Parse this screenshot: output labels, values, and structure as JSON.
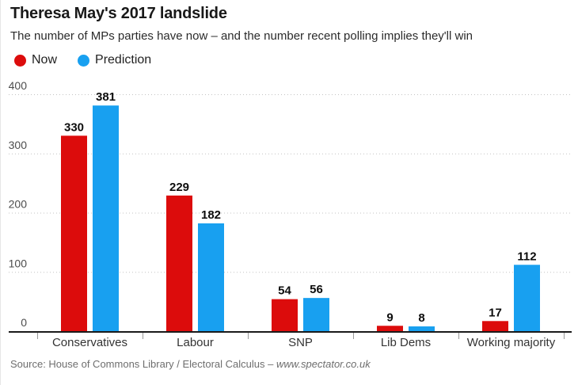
{
  "header": {
    "title": "Theresa May's 2017 landslide",
    "subtitle": "The number of MPs parties have now – and the number recent polling implies they'll win"
  },
  "legend": {
    "items": [
      {
        "label": "Now",
        "color": "#dc0c0c"
      },
      {
        "label": "Prediction",
        "color": "#18a0f0"
      }
    ]
  },
  "chart_data": {
    "type": "bar",
    "title": "Theresa May's 2017 landslide",
    "subtitle": "The number of MPs parties have now – and the number recent polling implies they'll win",
    "categories": [
      "Conservatives",
      "Labour",
      "SNP",
      "Lib Dems",
      "Working majority"
    ],
    "series": [
      {
        "name": "Now",
        "color": "#dc0c0c",
        "values": [
          330,
          229,
          54,
          9,
          17
        ]
      },
      {
        "name": "Prediction",
        "color": "#18a0f0",
        "values": [
          381,
          182,
          56,
          8,
          112
        ]
      }
    ],
    "xlabel": "",
    "ylabel": "",
    "ylim": [
      0,
      400
    ],
    "yticks": [
      0,
      100,
      200,
      300,
      400
    ],
    "grid": "horizontal-dotted",
    "legend_position": "top-left",
    "value_labels": true
  },
  "source": {
    "prefix": "Source: House of Commons Library / Electoral Calculus – ",
    "link": "www.spectator.co.uk"
  }
}
